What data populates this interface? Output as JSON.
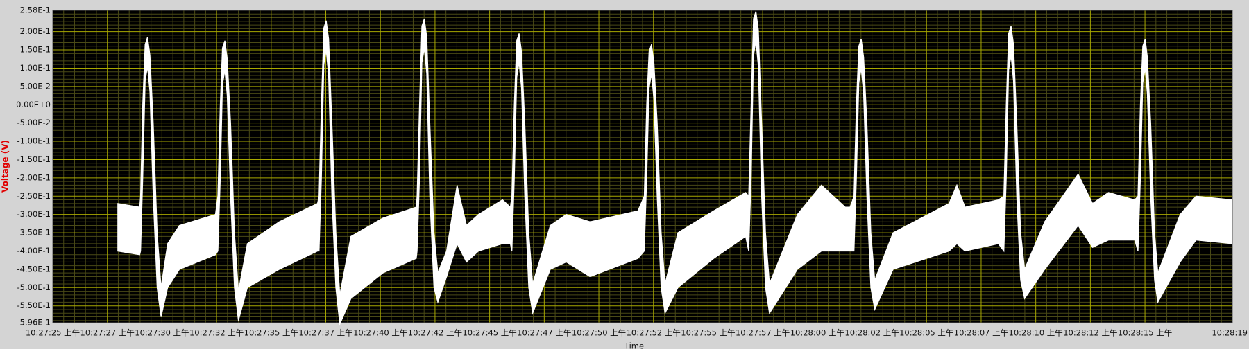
{
  "chart_data": {
    "type": "line",
    "band": true,
    "x_label": "Time",
    "y_label": "Voltage (V)",
    "background": "#000000",
    "grid": true,
    "grid_color": "#a8a800",
    "minor_grid": true,
    "minor_grid_color": "#4a4a16",
    "xlim": [
      0,
      54
    ],
    "xticks": [
      {
        "value": 0,
        "label": "10:27:25 上午"
      },
      {
        "value": 2.5,
        "label": "10:27:27 上午"
      },
      {
        "value": 5,
        "label": "10:27:30 上午"
      },
      {
        "value": 7.5,
        "label": "10:27:32 上午"
      },
      {
        "value": 10,
        "label": "10:27:35 上午"
      },
      {
        "value": 12.5,
        "label": "10:27:37 上午"
      },
      {
        "value": 15,
        "label": "10:27:40 上午"
      },
      {
        "value": 17.5,
        "label": "10:27:42 上午"
      },
      {
        "value": 20,
        "label": "10:27:45 上午"
      },
      {
        "value": 22.5,
        "label": "10:27:47 上午"
      },
      {
        "value": 25,
        "label": "10:27:50 上午"
      },
      {
        "value": 27.5,
        "label": "10:27:52 上午"
      },
      {
        "value": 30,
        "label": "10:27:55 上午"
      },
      {
        "value": 32.5,
        "label": "10:27:57 上午"
      },
      {
        "value": 35,
        "label": "10:28:00 上午"
      },
      {
        "value": 37.5,
        "label": "10:28:02 上午"
      },
      {
        "value": 40,
        "label": "10:28:05 上午"
      },
      {
        "value": 42.5,
        "label": "10:28:07 上午"
      },
      {
        "value": 45,
        "label": "10:28:10 上午"
      },
      {
        "value": 47.5,
        "label": "10:28:12 上午"
      },
      {
        "value": 50,
        "label": "10:28:15 上午"
      },
      {
        "value": 54,
        "label": "10:28:19"
      }
    ],
    "ylim": [
      -0.596,
      0.258
    ],
    "yticks": [
      {
        "value": 0.258,
        "label": "2.58E-1"
      },
      {
        "value": 0.2,
        "label": "2.00E-1"
      },
      {
        "value": 0.15,
        "label": "1.50E-1"
      },
      {
        "value": 0.1,
        "label": "1.00E-1"
      },
      {
        "value": 0.05,
        "label": "5.00E-2"
      },
      {
        "value": 0,
        "label": "0.00E+0"
      },
      {
        "value": -0.05,
        "label": "-5.00E-2"
      },
      {
        "value": -0.1,
        "label": "-1.00E-1"
      },
      {
        "value": -0.15,
        "label": "-1.50E-1"
      },
      {
        "value": -0.2,
        "label": "-2.00E-1"
      },
      {
        "value": -0.25,
        "label": "-2.50E-1"
      },
      {
        "value": -0.3,
        "label": "-3.00E-1"
      },
      {
        "value": -0.35,
        "label": "-3.50E-1"
      },
      {
        "value": -0.4,
        "label": "-4.00E-1"
      },
      {
        "value": -0.45,
        "label": "-4.50E-1"
      },
      {
        "value": -0.5,
        "label": "-5.00E-1"
      },
      {
        "value": -0.55,
        "label": "-5.50E-1"
      },
      {
        "value": -0.596,
        "label": "-5.96E-1"
      }
    ],
    "x": [
      2.96,
      3.98,
      4.02,
      4.12,
      4.23,
      4.34,
      4.45,
      4.6,
      4.78,
      4.96,
      5.26,
      5.8,
      7.45,
      7.56,
      7.67,
      7.77,
      7.88,
      7.99,
      8.14,
      8.32,
      8.5,
      8.91,
      10.37,
      12.12,
      12.19,
      12.3,
      12.41,
      12.52,
      12.63,
      12.78,
      12.96,
      13.14,
      13.65,
      15.11,
      16.64,
      16.68,
      16.79,
      16.9,
      17.01,
      17.12,
      17.26,
      17.45,
      17.63,
      18.03,
      18.51,
      18.94,
      19.49,
      20.59,
      20.95,
      21.02,
      21.13,
      21.24,
      21.35,
      21.46,
      21.61,
      21.79,
      21.97,
      22.78,
      23.51,
      24.6,
      26.79,
      27.08,
      27.19,
      27.3,
      27.41,
      27.52,
      27.67,
      27.85,
      28.03,
      28.62,
      30.26,
      31.72,
      31.86,
      31.97,
      32.08,
      32.19,
      32.3,
      32.45,
      32.63,
      32.81,
      34.09,
      35.19,
      36.28,
      36.5,
      36.68,
      36.79,
      36.9,
      37.01,
      37.12,
      37.27,
      37.45,
      37.63,
      38.47,
      41.03,
      41.39,
      41.76,
      43.29,
      43.54,
      43.65,
      43.76,
      43.87,
      43.98,
      44.13,
      44.31,
      44.49,
      45.41,
      46.94,
      47.6,
      48.33,
      49.53,
      49.68,
      49.79,
      49.9,
      50.01,
      50.11,
      50.26,
      50.44,
      50.59,
      51.61,
      52.34,
      54
    ],
    "series": [
      {
        "color": "#ffffff",
        "values": [
          -0.27,
          -0.28,
          -0.25,
          0,
          0.165,
          0.185,
          0.135,
          -0.05,
          -0.35,
          -0.5,
          -0.38,
          -0.33,
          -0.3,
          -0.25,
          0,
          0.155,
          0.175,
          0.125,
          -0.05,
          -0.35,
          -0.51,
          -0.38,
          -0.32,
          -0.27,
          -0.25,
          0,
          0.21,
          0.23,
          0.18,
          -0.05,
          -0.35,
          -0.52,
          -0.36,
          -0.31,
          -0.28,
          -0.25,
          0,
          0.215,
          0.235,
          0.185,
          -0.05,
          -0.35,
          -0.46,
          -0.4,
          -0.22,
          -0.33,
          -0.3,
          -0.26,
          -0.28,
          -0.25,
          0,
          0.175,
          0.195,
          0.145,
          -0.05,
          -0.35,
          -0.49,
          -0.33,
          -0.3,
          -0.32,
          -0.29,
          -0.25,
          0,
          0.145,
          0.165,
          0.115,
          -0.05,
          -0.35,
          -0.49,
          -0.35,
          -0.29,
          -0.24,
          -0.25,
          0,
          0.235,
          0.255,
          0.205,
          -0.05,
          -0.35,
          -0.49,
          -0.3,
          -0.22,
          -0.28,
          -0.28,
          -0.25,
          0,
          0.16,
          0.18,
          0.13,
          -0.05,
          -0.35,
          -0.48,
          -0.35,
          -0.27,
          -0.22,
          -0.28,
          -0.26,
          -0.25,
          0,
          0.195,
          0.215,
          0.165,
          -0.05,
          -0.35,
          -0.45,
          -0.32,
          -0.19,
          -0.27,
          -0.24,
          -0.26,
          -0.25,
          0,
          0.16,
          0.18,
          0.13,
          -0.05,
          -0.35,
          -0.46,
          -0.3,
          -0.25,
          -0.26
        ]
      },
      {
        "color": "#ffffff",
        "values": [
          -0.4,
          -0.41,
          -0.4,
          -0.2,
          0.065,
          0.105,
          0.035,
          -0.25,
          -0.5,
          -0.58,
          -0.5,
          -0.45,
          -0.41,
          -0.4,
          -0.2,
          0.055,
          0.095,
          0.025,
          -0.25,
          -0.5,
          -0.59,
          -0.5,
          -0.45,
          -0.4,
          -0.4,
          -0.2,
          0.11,
          0.15,
          0.08,
          -0.25,
          -0.5,
          -0.6,
          -0.53,
          -0.46,
          -0.42,
          -0.4,
          -0.2,
          0.115,
          0.155,
          0.085,
          -0.25,
          -0.5,
          -0.54,
          -0.47,
          -0.38,
          -0.43,
          -0.4,
          -0.38,
          -0.38,
          -0.4,
          -0.2,
          0.075,
          0.115,
          0.045,
          -0.25,
          -0.5,
          -0.57,
          -0.45,
          -0.43,
          -0.47,
          -0.42,
          -0.4,
          -0.2,
          0.045,
          0.085,
          0.015,
          -0.25,
          -0.5,
          -0.57,
          -0.5,
          -0.42,
          -0.36,
          -0.4,
          -0.2,
          0.135,
          0.175,
          0.105,
          -0.25,
          -0.5,
          -0.57,
          -0.45,
          -0.4,
          -0.4,
          -0.4,
          -0.4,
          -0.2,
          0.06,
          0.1,
          0.03,
          -0.25,
          -0.5,
          -0.56,
          -0.45,
          -0.4,
          -0.38,
          -0.4,
          -0.38,
          -0.4,
          -0.2,
          0.095,
          0.135,
          0.065,
          -0.25,
          -0.48,
          -0.53,
          -0.45,
          -0.33,
          -0.39,
          -0.37,
          -0.37,
          -0.4,
          -0.2,
          0.06,
          0.1,
          0.03,
          -0.25,
          -0.48,
          -0.54,
          -0.43,
          -0.37,
          -0.38
        ]
      }
    ]
  }
}
